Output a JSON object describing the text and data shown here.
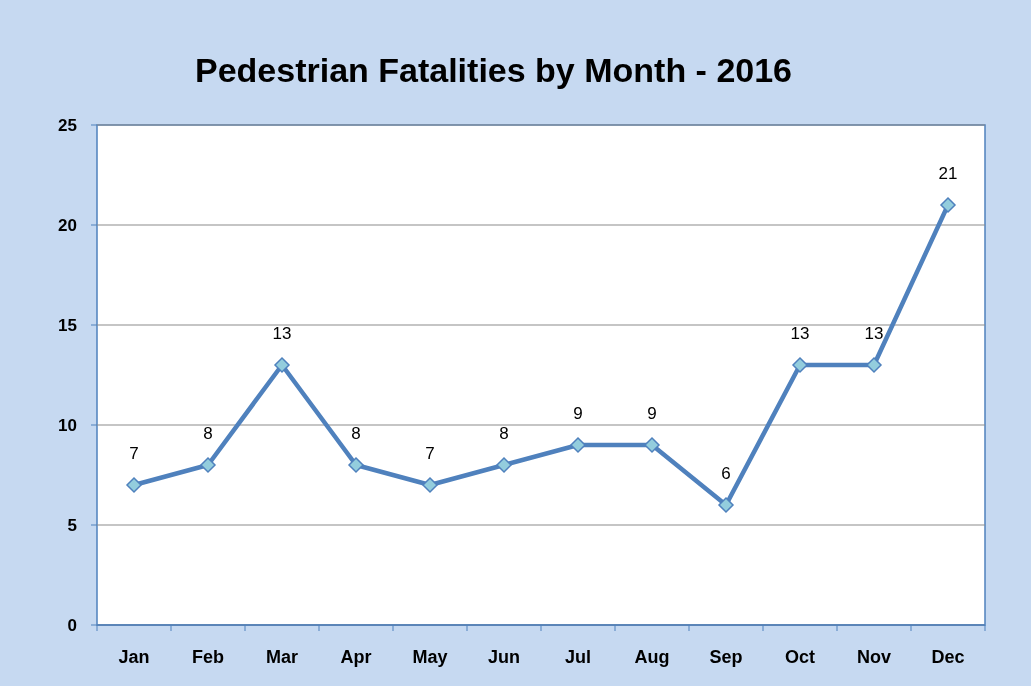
{
  "chart_data": {
    "type": "line",
    "title": "Pedestrian Fatalities by Month - 2016",
    "categories": [
      "Jan",
      "Feb",
      "Mar",
      "Apr",
      "May",
      "Jun",
      "Jul",
      "Aug",
      "Sep",
      "Oct",
      "Nov",
      "Dec"
    ],
    "series": [
      {
        "color": "#4f81bd",
        "values": [
          7,
          8,
          13,
          8,
          7,
          8,
          9,
          9,
          6,
          13,
          13,
          21
        ]
      }
    ],
    "ylim": [
      0,
      25
    ],
    "yticks": [
      0,
      5,
      10,
      15,
      20,
      25
    ],
    "grid": "y",
    "marker": "diamond",
    "line_style": "solid",
    "data_labels": true
  }
}
